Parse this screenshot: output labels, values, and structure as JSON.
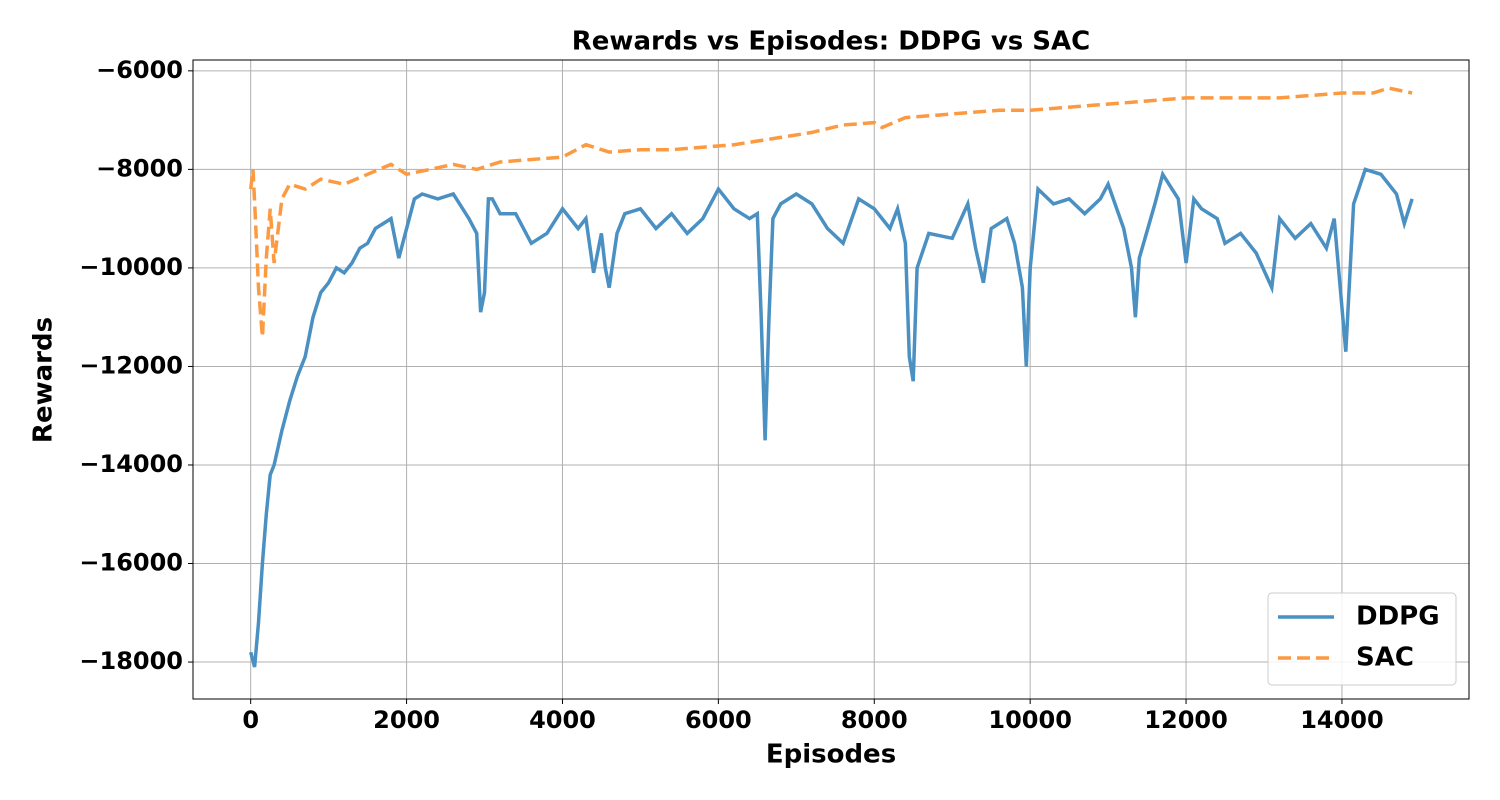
{
  "chart_data": {
    "type": "line",
    "title": "Rewards vs Episodes: DDPG vs SAC",
    "xlabel": "Episodes",
    "ylabel": "Rewards",
    "xlim": [
      -740,
      15630
    ],
    "ylim": [
      -18750,
      -5780
    ],
    "xticks": [
      0,
      2000,
      4000,
      6000,
      8000,
      10000,
      12000,
      14000
    ],
    "yticks": [
      {
        "value": -18000,
        "label": "−18000"
      },
      {
        "value": -16000,
        "label": "−16000"
      },
      {
        "value": -14000,
        "label": "−14000"
      },
      {
        "value": -12000,
        "label": "−12000"
      },
      {
        "value": -10000,
        "label": "−10000"
      },
      {
        "value": -8000,
        "label": "−8000"
      },
      {
        "value": -6000,
        "label": "−6000"
      }
    ],
    "grid": true,
    "legend": "lower right",
    "series": [
      {
        "name": "DDPG",
        "color": "#4a90c2",
        "dash": "solid",
        "x": [
          0,
          50,
          100,
          150,
          200,
          250,
          300,
          400,
          500,
          600,
          700,
          800,
          900,
          1000,
          1100,
          1200,
          1300,
          1400,
          1500,
          1600,
          1700,
          1800,
          1900,
          2000,
          2100,
          2200,
          2400,
          2600,
          2800,
          2900,
          2950,
          3000,
          3050,
          3100,
          3200,
          3400,
          3600,
          3800,
          4000,
          4200,
          4300,
          4400,
          4500,
          4550,
          4600,
          4700,
          4800,
          5000,
          5200,
          5400,
          5600,
          5800,
          6000,
          6200,
          6400,
          6500,
          6550,
          6600,
          6650,
          6700,
          6800,
          7000,
          7200,
          7400,
          7600,
          7800,
          8000,
          8200,
          8300,
          8400,
          8450,
          8500,
          8550,
          8700,
          9000,
          9200,
          9300,
          9400,
          9500,
          9700,
          9800,
          9900,
          9950,
          10000,
          10100,
          10300,
          10500,
          10700,
          10900,
          11000,
          11200,
          11300,
          11350,
          11400,
          11600,
          11700,
          11900,
          12000,
          12100,
          12200,
          12400,
          12500,
          12700,
          12900,
          13100,
          13200,
          13400,
          13600,
          13800,
          13900,
          14050,
          14150,
          14300,
          14500,
          14700,
          14800,
          14900
        ],
        "values": [
          -17800,
          -18100,
          -17200,
          -16000,
          -15000,
          -14200,
          -14000,
          -13300,
          -12700,
          -12200,
          -11800,
          -11000,
          -10500,
          -10300,
          -10000,
          -10100,
          -9900,
          -9600,
          -9500,
          -9200,
          -9100,
          -9000,
          -9800,
          -9200,
          -8600,
          -8500,
          -8600,
          -8500,
          -9000,
          -9300,
          -10900,
          -10500,
          -8600,
          -8600,
          -8900,
          -8900,
          -9500,
          -9300,
          -8800,
          -9200,
          -9000,
          -10100,
          -9300,
          -10000,
          -10400,
          -9300,
          -8900,
          -8800,
          -9200,
          -8900,
          -9300,
          -9000,
          -8400,
          -8800,
          -9000,
          -8900,
          -11000,
          -13500,
          -11000,
          -9000,
          -8700,
          -8500,
          -8700,
          -9200,
          -9500,
          -8600,
          -8800,
          -9200,
          -8800,
          -9500,
          -11800,
          -12300,
          -10000,
          -9300,
          -9400,
          -8700,
          -9600,
          -10300,
          -9200,
          -9000,
          -9500,
          -10400,
          -12000,
          -10000,
          -8400,
          -8700,
          -8600,
          -8900,
          -8600,
          -8300,
          -9200,
          -10000,
          -11000,
          -9800,
          -8700,
          -8100,
          -8600,
          -9900,
          -8600,
          -8800,
          -9000,
          -9500,
          -9300,
          -9700,
          -10400,
          -9000,
          -9400,
          -9100,
          -9600,
          -9000,
          -11700,
          -8700,
          -8000,
          -8100,
          -8500,
          -9100,
          -8600
        ]
      },
      {
        "name": "SAC",
        "color": "#fc9a42",
        "dash": "dashed",
        "x": [
          0,
          30,
          60,
          100,
          150,
          200,
          250,
          300,
          400,
          500,
          700,
          900,
          1200,
          1500,
          1800,
          2000,
          2300,
          2600,
          2900,
          3200,
          3600,
          4000,
          4300,
          4600,
          5000,
          5400,
          5800,
          6200,
          6400,
          6800,
          7200,
          7600,
          8000,
          8100,
          8400,
          8800,
          9200,
          9600,
          10000,
          10400,
          10800,
          11200,
          11600,
          12000,
          12400,
          12800,
          13200,
          13600,
          14000,
          14400,
          14600,
          14900
        ],
        "values": [
          -8400,
          -8000,
          -9000,
          -10400,
          -11400,
          -9800,
          -8800,
          -9900,
          -8600,
          -8300,
          -8400,
          -8200,
          -8300,
          -8100,
          -7900,
          -8100,
          -8000,
          -7900,
          -8000,
          -7850,
          -7800,
          -7750,
          -7500,
          -7650,
          -7600,
          -7600,
          -7550,
          -7500,
          -7450,
          -7350,
          -7250,
          -7100,
          -7050,
          -7150,
          -6950,
          -6900,
          -6850,
          -6800,
          -6800,
          -6750,
          -6700,
          -6650,
          -6600,
          -6550,
          -6550,
          -6550,
          -6550,
          -6500,
          -6450,
          -6450,
          -6350,
          -6450
        ]
      }
    ]
  }
}
